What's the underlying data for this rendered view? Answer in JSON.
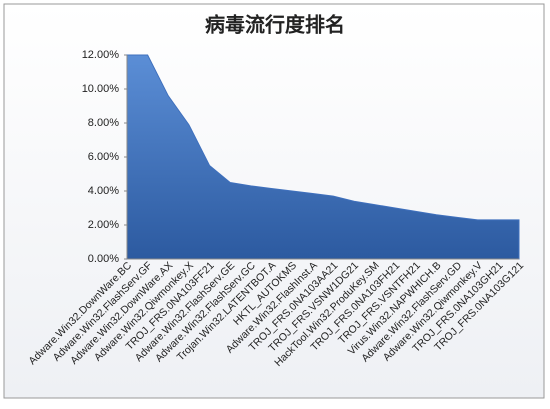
{
  "chart_data": {
    "type": "area",
    "title": "病毒流行度排名",
    "categories": [
      "Adware.Win32.DownWare.BC",
      "Adware.Win32.FlashServ.GF",
      "Adware.Win32.DownWare.AX",
      "Adware.Win32.Qiwmonkey.X",
      "TROJ_FRS.0NA103FF21",
      "Adware.Win32.FlashServ.GE",
      "Adware.Win32.FlashServ.GC",
      "Trojan.Win32.LATENTBOT.A",
      "HKTL_AUTOKMS",
      "Adware.Win32.FlashInst.A",
      "TROJ_FRS.0NA103AA21",
      "TROJ_FRS.VSNW1DG21",
      "HackTool.Win32.ProduKey.SM",
      "TROJ_FRS.0NA103FH21",
      "TROJ_FRS.VSNTFH21",
      "Virus.Win32.NAPWHICH.B",
      "Adware.Win32.FlashServ.GD",
      "Adware.Win32.Qiwmonkey.V",
      "TROJ_FRS.0NA103GH21",
      "TROJ_FRS.0NA103G121"
    ],
    "values": [
      12,
      12,
      9.6,
      7.9,
      5.5,
      4.5,
      4.3,
      4.15,
      4.0,
      3.85,
      3.7,
      3.4,
      3.2,
      3.0,
      2.8,
      2.6,
      2.45,
      2.3,
      2.3,
      2.3
    ],
    "color": "#3f70bd",
    "ylim": [
      0,
      12
    ],
    "yticks": [
      {
        "value": 0,
        "label": "0.00%"
      },
      {
        "value": 2,
        "label": "2.00%"
      },
      {
        "value": 4,
        "label": "4.00%"
      },
      {
        "value": 6,
        "label": "6.00%"
      },
      {
        "value": 8,
        "label": "8.00%"
      },
      {
        "value": 10,
        "label": "10.00%"
      },
      {
        "value": 12,
        "label": "12.00%"
      }
    ]
  }
}
